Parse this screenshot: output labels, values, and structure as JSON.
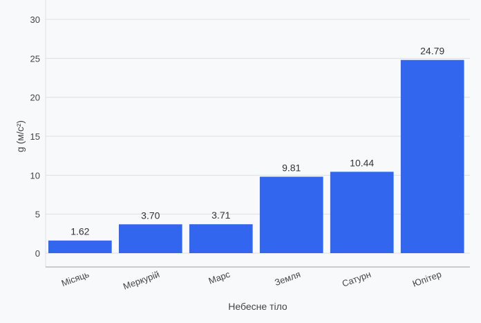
{
  "chart_data": {
    "type": "bar",
    "categories": [
      "Місяць",
      "Меркурій",
      "Марс",
      "Земля",
      "Сатурн",
      "Юпітер"
    ],
    "values": [
      1.62,
      3.7,
      3.71,
      9.81,
      10.44,
      24.79
    ],
    "data_labels": [
      "1.62",
      "3.70",
      "3.71",
      "9.81",
      "10.44",
      "24.79"
    ],
    "xlabel": "Небесне тіло",
    "ylabel": "g (м/с²)",
    "ylim": [
      0,
      30
    ],
    "yticks": [
      0,
      5,
      10,
      15,
      20,
      25,
      30
    ],
    "grid": true,
    "bar_color": "#3366ee"
  }
}
